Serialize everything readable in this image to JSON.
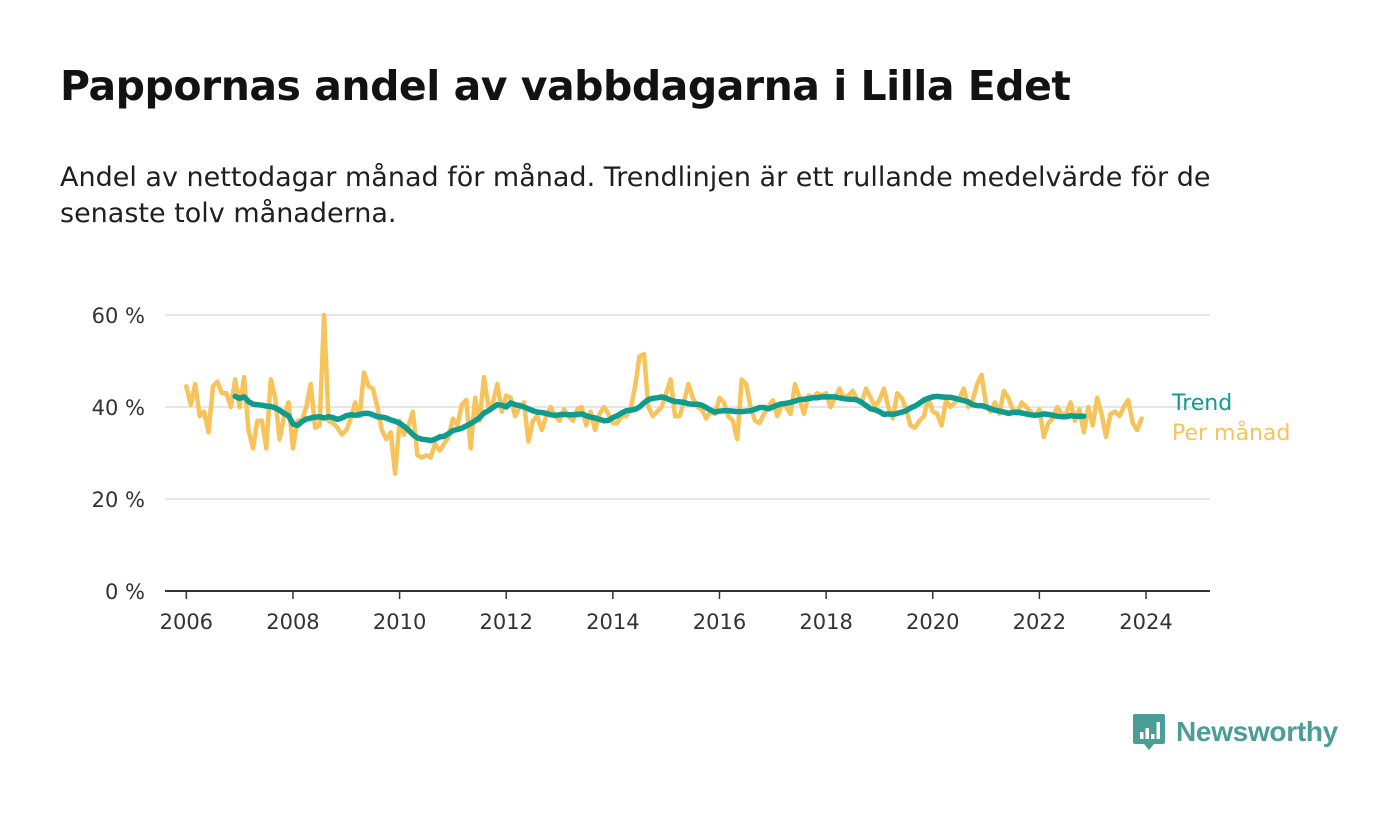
{
  "title": "Pappornas andel av vabbdagarna i Lilla Edet",
  "subtitle": "Andel av nettodagar månad för månad. Trendlinjen är ett rullande medelvärde för de senaste tolv månaderna.",
  "brand": {
    "name": "Newsworthy",
    "color": "#4b9e97"
  },
  "chart_data": {
    "type": "line",
    "ylim": [
      0,
      60
    ],
    "xlim": [
      2005.6,
      2025.2
    ],
    "yticks": [
      {
        "value": 0,
        "label": "0 %"
      },
      {
        "value": 20,
        "label": "20 %"
      },
      {
        "value": 40,
        "label": "40 %"
      },
      {
        "value": 60,
        "label": "60 %"
      }
    ],
    "xticks": [
      {
        "value": 2006,
        "label": "2006"
      },
      {
        "value": 2008,
        "label": "2008"
      },
      {
        "value": 2010,
        "label": "2010"
      },
      {
        "value": 2012,
        "label": "2012"
      },
      {
        "value": 2014,
        "label": "2014"
      },
      {
        "value": 2016,
        "label": "2016"
      },
      {
        "value": 2018,
        "label": "2018"
      },
      {
        "value": 2020,
        "label": "2020"
      },
      {
        "value": 2022,
        "label": "2022"
      },
      {
        "value": 2024,
        "label": "2024"
      }
    ],
    "grid": true,
    "legend_placement": "right, at line ends",
    "series": [
      {
        "name": "Per månad",
        "color": "#f7c35b",
        "start": [
          2006,
          1
        ],
        "values": [
          44.5,
          40.5,
          45,
          38,
          39,
          34.5,
          44.5,
          45.5,
          43,
          43,
          40,
          46,
          40,
          46.5,
          35,
          31,
          37,
          37,
          31,
          46,
          42,
          33,
          38,
          41,
          31,
          37,
          37,
          40,
          45,
          35.5,
          36,
          60,
          37,
          36.5,
          35.5,
          34,
          35,
          37.5,
          41,
          38,
          47.5,
          44.5,
          44,
          40,
          35,
          33,
          34.5,
          25.5,
          37,
          34,
          36,
          39,
          29.5,
          29,
          29.5,
          29,
          32,
          30.5,
          32,
          33.5,
          37.5,
          36,
          40.5,
          41.5,
          31,
          42,
          37,
          46.5,
          40,
          41,
          45,
          39,
          42.5,
          42,
          38,
          40,
          41,
          32.5,
          37,
          38,
          35,
          38,
          40,
          38,
          37,
          39.5,
          38,
          37,
          39.5,
          40,
          36,
          39,
          35,
          38.5,
          40,
          38.5,
          36.5,
          36.5,
          38,
          38,
          39.5,
          44.5,
          51,
          51.5,
          40,
          38,
          39,
          40,
          43,
          46,
          38,
          38,
          41,
          45,
          42,
          40,
          39.5,
          37.5,
          39,
          38.5,
          42,
          41,
          38,
          37,
          33,
          46,
          45,
          40,
          37,
          36.5,
          38.5,
          40,
          41.5,
          38,
          40.5,
          40,
          38.5,
          45,
          42,
          38.5,
          42.5,
          42,
          43,
          42.5,
          43,
          40,
          42,
          44,
          42,
          42.5,
          43.5,
          41.5,
          41,
          44,
          42,
          40,
          41.5,
          44,
          40,
          37.5,
          43,
          42,
          39.5,
          36,
          35.5,
          37,
          38,
          42,
          39,
          38.5,
          36,
          41.5,
          40,
          41,
          42,
          44,
          40,
          41.5,
          45,
          47,
          40.5,
          39,
          41,
          38.5,
          43.5,
          42,
          39.5,
          38.5,
          41,
          40,
          39,
          38,
          39.5,
          33.5,
          36.5,
          37.5,
          40,
          38.5,
          38.5,
          41,
          37,
          39.5,
          34.5,
          40,
          36,
          42,
          38.5,
          33.5,
          38.5,
          39,
          38,
          40,
          41.5,
          36.5,
          35,
          37.5
        ]
      },
      {
        "name": "Trend",
        "color": "#0f9b8e",
        "start": [
          2006,
          12
        ],
        "values": [
          42.3,
          41.9,
          42.2,
          41.2,
          40.6,
          40.5,
          40.4,
          40.2,
          40.1,
          39.8,
          39.3,
          38.6,
          38.1,
          36.3,
          36.0,
          36.8,
          37.4,
          37.6,
          37.8,
          37.9,
          37.6,
          37.9,
          37.7,
          37.3,
          37.6,
          38.1,
          38.3,
          38.2,
          38.4,
          38.6,
          38.6,
          38.3,
          37.9,
          37.8,
          37.6,
          37.2,
          36.9,
          36.5,
          35.8,
          35.0,
          34.0,
          33.3,
          33.0,
          32.9,
          32.7,
          33.0,
          33.5,
          33.6,
          34.2,
          34.9,
          35.1,
          35.4,
          35.9,
          36.4,
          37.0,
          37.7,
          38.7,
          39.2,
          39.9,
          40.5,
          40.4,
          40.0,
          40.9,
          40.5,
          40.3,
          40.0,
          39.6,
          39.2,
          38.9,
          38.8,
          38.6,
          38.3,
          38.2,
          38.3,
          38.4,
          38.3,
          38.3,
          38.4,
          38.5,
          38.1,
          37.8,
          37.6,
          37.3,
          37.0,
          37.1,
          37.7,
          38.1,
          38.7,
          39.2,
          39.3,
          39.5,
          40.0,
          40.9,
          41.6,
          41.9,
          42.0,
          42.2,
          41.9,
          41.5,
          41.2,
          41.1,
          41.0,
          40.7,
          40.6,
          40.6,
          40.4,
          39.9,
          39.3,
          38.9,
          39.1,
          39.2,
          39.2,
          39.1,
          39.0,
          39.0,
          39.1,
          39.2,
          39.5,
          39.9,
          39.9,
          39.6,
          40.0,
          40.4,
          40.7,
          40.8,
          41.0,
          41.3,
          41.6,
          41.7,
          41.8,
          42.0,
          42.0,
          42.2,
          42.2,
          42.2,
          42.2,
          42.0,
          41.8,
          41.7,
          41.7,
          41.5,
          41.0,
          40.3,
          39.6,
          39.4,
          39.0,
          38.4,
          38.5,
          38.4,
          38.6,
          38.9,
          39.2,
          39.8,
          40.2,
          40.8,
          41.5,
          41.9,
          42.2,
          42.3,
          42.2,
          42.1,
          42.1,
          41.9,
          41.6,
          41.4,
          41.1,
          40.5,
          40.3,
          40.3,
          40.0,
          39.6,
          39.3,
          39.1,
          38.9,
          38.6,
          38.8,
          38.9,
          38.7,
          38.5,
          38.3,
          38.2,
          38.3,
          38.5,
          38.4,
          38.2,
          38.0,
          37.9,
          37.9,
          38.1,
          38.0,
          38.0,
          38.0
        ]
      }
    ]
  }
}
